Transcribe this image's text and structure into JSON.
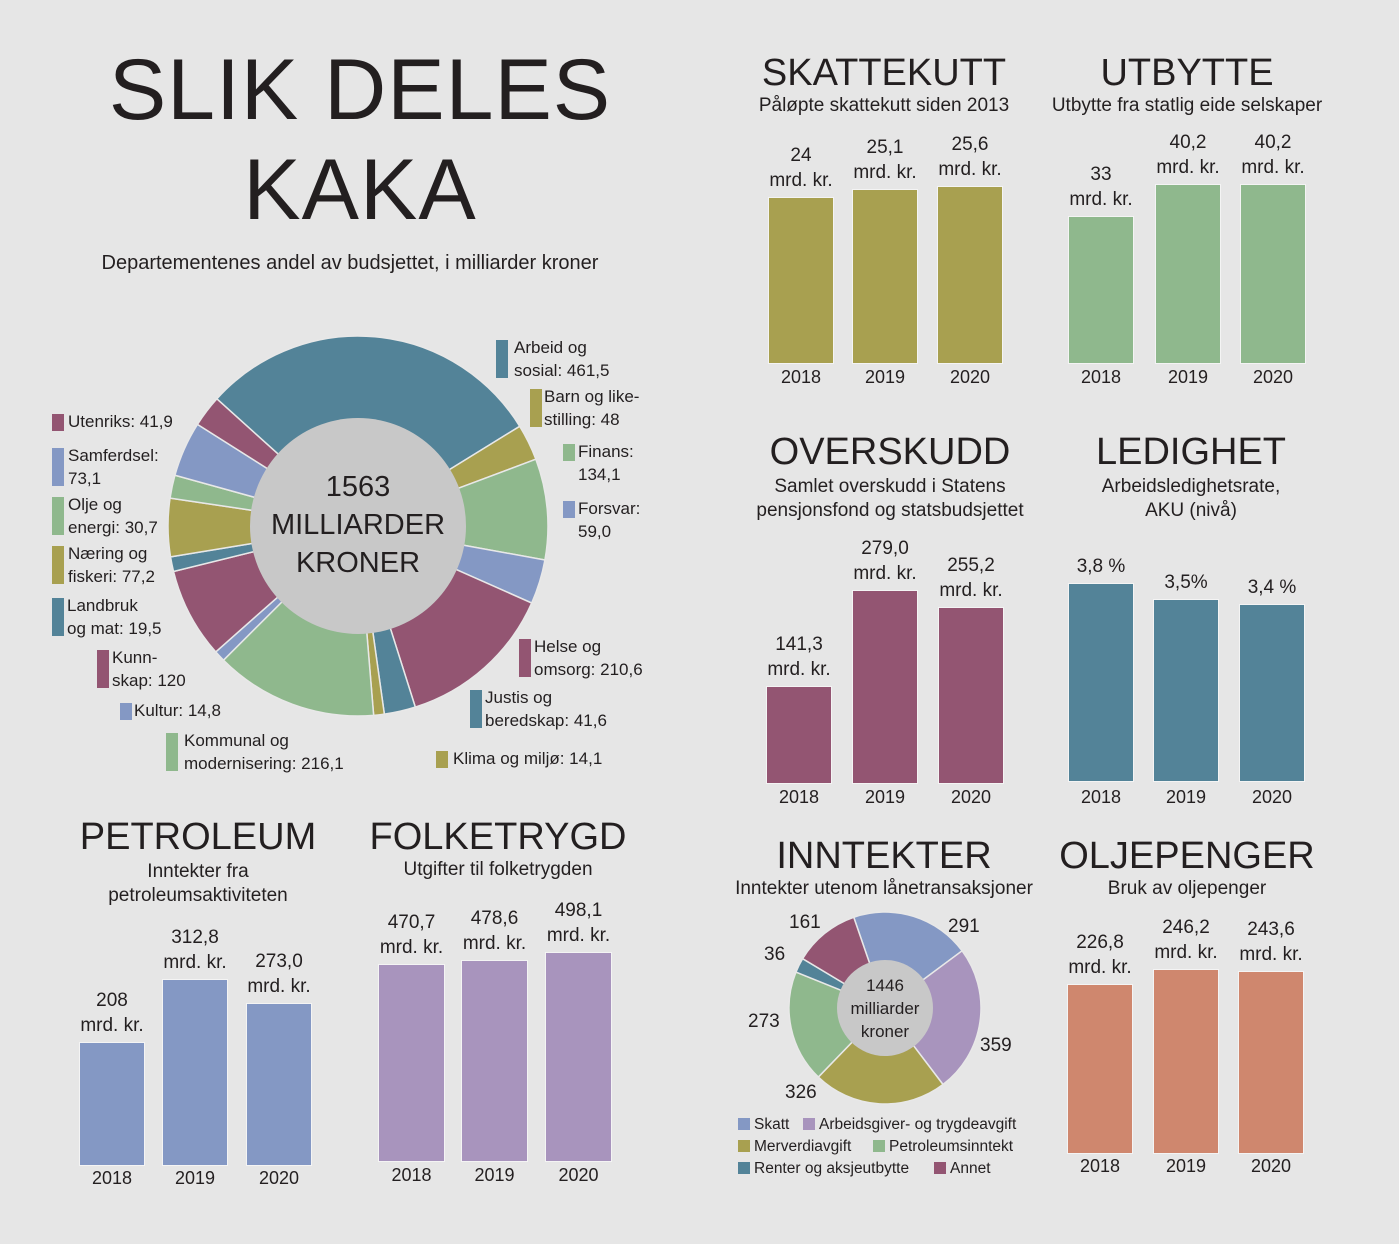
{
  "header": {
    "title_line1": "SLIK DELES",
    "title_line2": "KAKA",
    "subtitle": "Departementenes andel av budsjettet, i milliarder kroner"
  },
  "colors": {
    "teal": "#538398",
    "olive": "#a8a050",
    "green": "#8fb88d",
    "blue": "#8498c4",
    "plum": "#935572",
    "lavender": "#a894bd",
    "salmon": "#cf876e",
    "center": "#c8c8c8"
  },
  "chart_data": [
    {
      "id": "budget-donut",
      "type": "pie",
      "center_label": [
        "1563",
        "MILLIARDER",
        "KRONER"
      ],
      "slices": [
        {
          "label": "Arbeid og sosial: 461,5",
          "lines": [
            "Arbeid og",
            "sosial: 461,5"
          ],
          "value": 461.5,
          "color": "#538398"
        },
        {
          "label": "Barn og likestilling: 48",
          "lines": [
            "Barn og like-",
            "stilling: 48"
          ],
          "value": 48,
          "color": "#a8a050"
        },
        {
          "label": "Finans: 134,1",
          "lines": [
            "Finans:",
            "134,1"
          ],
          "value": 134.1,
          "color": "#8fb88d"
        },
        {
          "label": "Forsvar: 59,0",
          "lines": [
            "Forsvar:",
            "59,0"
          ],
          "value": 59.0,
          "color": "#8498c4"
        },
        {
          "label": "Helse og omsorg: 210,6",
          "lines": [
            "Helse og",
            "omsorg: 210,6"
          ],
          "value": 210.6,
          "color": "#935572"
        },
        {
          "label": "Justis og beredskap: 41,6",
          "lines": [
            "Justis og",
            "beredskap: 41,6"
          ],
          "value": 41.6,
          "color": "#538398"
        },
        {
          "label": "Klima og miljø: 14,1",
          "lines": [
            "Klima og miljø: 14,1"
          ],
          "value": 14.1,
          "color": "#a8a050"
        },
        {
          "label": "Kommunal og modernisering: 216,1",
          "lines": [
            "Kommunal og",
            "modernisering: 216,1"
          ],
          "value": 216.1,
          "color": "#8fb88d"
        },
        {
          "label": "Kultur: 14,8",
          "lines": [
            "Kultur: 14,8"
          ],
          "value": 14.8,
          "color": "#8498c4"
        },
        {
          "label": "Kunnskap: 120",
          "lines": [
            "Kunn-",
            "skap: 120"
          ],
          "value": 120,
          "color": "#935572"
        },
        {
          "label": "Landbruk og mat: 19,5",
          "lines": [
            "Landbruk",
            "og mat: 19,5"
          ],
          "value": 19.5,
          "color": "#538398"
        },
        {
          "label": "Næring og fiskeri: 77,2",
          "lines": [
            "Næring og",
            "fiskeri: 77,2"
          ],
          "value": 77.2,
          "color": "#a8a050"
        },
        {
          "label": "Olje og energi: 30,7",
          "lines": [
            "Olje og",
            "energi: 30,7"
          ],
          "value": 30.7,
          "color": "#8fb88d"
        },
        {
          "label": "Samferdsel: 73,1",
          "lines": [
            "Samferdsel:",
            "73,1"
          ],
          "value": 73.1,
          "color": "#8498c4"
        },
        {
          "label": "Utenriks: 41,9",
          "lines": [
            "Utenriks: 41,9"
          ],
          "value": 41.9,
          "color": "#935572"
        }
      ]
    },
    {
      "id": "skattekutt",
      "type": "bar",
      "title": "SKATTEKUTT",
      "subtitle": [
        "Påløpte skattekutt siden 2013"
      ],
      "categories": [
        "2018",
        "2019",
        "2020"
      ],
      "values": [
        24,
        25.1,
        25.6
      ],
      "labels": [
        [
          "24",
          "mrd. kr."
        ],
        [
          "25,1",
          "mrd. kr."
        ],
        [
          "25,6",
          "mrd. kr."
        ]
      ],
      "color": "#a8a050"
    },
    {
      "id": "utbytte",
      "type": "bar",
      "title": "UTBYTTE",
      "subtitle": [
        "Utbytte fra statlig eide selskaper"
      ],
      "categories": [
        "2018",
        "2019",
        "2020"
      ],
      "values": [
        33,
        40.2,
        40.2
      ],
      "labels": [
        [
          "33",
          "mrd. kr."
        ],
        [
          "40,2",
          "mrd. kr."
        ],
        [
          "40,2",
          "mrd. kr."
        ]
      ],
      "color": "#8fb88d"
    },
    {
      "id": "overskudd",
      "type": "bar",
      "title": "OVERSKUDD",
      "subtitle": [
        "Samlet overskudd i Statens",
        "pensjonsfond og statsbudsjettet"
      ],
      "categories": [
        "2018",
        "2019",
        "2020"
      ],
      "values": [
        141.3,
        279.0,
        255.2
      ],
      "labels": [
        [
          "141,3",
          "mrd. kr."
        ],
        [
          "279,0",
          "mrd. kr."
        ],
        [
          "255,2",
          "mrd. kr."
        ]
      ],
      "color": "#935572"
    },
    {
      "id": "ledighet",
      "type": "bar",
      "title": "LEDIGHET",
      "subtitle": [
        "Arbeidsledighetsrate,",
        "AKU (nivå)"
      ],
      "categories": [
        "2018",
        "2019",
        "2020"
      ],
      "values": [
        3.8,
        3.5,
        3.4
      ],
      "labels": [
        [
          "3,8 %"
        ],
        [
          "3,5%"
        ],
        [
          "3,4 %"
        ]
      ],
      "color": "#538398"
    },
    {
      "id": "petroleum",
      "type": "bar",
      "title": "PETROLEUM",
      "subtitle": [
        "Inntekter fra",
        "petroleumsaktiviteten"
      ],
      "categories": [
        "2018",
        "2019",
        "2020"
      ],
      "values": [
        208,
        312.8,
        273.0
      ],
      "labels": [
        [
          "208",
          "mrd. kr."
        ],
        [
          "312,8",
          "mrd. kr."
        ],
        [
          "273,0",
          "mrd. kr."
        ]
      ],
      "color": "#8498c4"
    },
    {
      "id": "folketrygd",
      "type": "bar",
      "title": "FOLKETRYGD",
      "subtitle": [
        "Utgifter til folketrygden"
      ],
      "categories": [
        "2018",
        "2019",
        "2020"
      ],
      "values": [
        470.7,
        478.6,
        498.1
      ],
      "labels": [
        [
          "470,7",
          "mrd. kr."
        ],
        [
          "478,6",
          "mrd. kr."
        ],
        [
          "498,1",
          "mrd. kr."
        ]
      ],
      "color": "#a894bd"
    },
    {
      "id": "oljepenger",
      "type": "bar",
      "title": "OLJEPENGER",
      "subtitle": [
        "Bruk av oljepenger"
      ],
      "categories": [
        "2018",
        "2019",
        "2020"
      ],
      "values": [
        226.8,
        246.2,
        243.6
      ],
      "labels": [
        [
          "226,8",
          "mrd. kr."
        ],
        [
          "246,2",
          "mrd. kr."
        ],
        [
          "243,6",
          "mrd. kr."
        ]
      ],
      "color": "#cf876e"
    },
    {
      "id": "inntekter",
      "type": "pie",
      "title": "INNTEKTER",
      "subtitle": [
        "Inntekter utenom lånetransaksjoner"
      ],
      "center_label": [
        "1446",
        "milliarder",
        "kroner"
      ],
      "slices": [
        {
          "label": "291",
          "legend": "Skatt",
          "value": 291,
          "color": "#8498c4"
        },
        {
          "label": "359",
          "legend": "Arbeidsgiver- og trygdeavgift",
          "value": 359,
          "color": "#a894bd"
        },
        {
          "label": "326",
          "legend": "Merverdiavgift",
          "value": 326,
          "color": "#a8a050"
        },
        {
          "label": "273",
          "legend": "Petroleumsinntekt",
          "value": 273,
          "color": "#8fb88d"
        },
        {
          "label": "36",
          "legend": "Renter og aksjeutbytte",
          "value": 36,
          "color": "#538398"
        },
        {
          "label": "161",
          "legend": "Annet",
          "value": 161,
          "color": "#935572"
        }
      ]
    }
  ]
}
